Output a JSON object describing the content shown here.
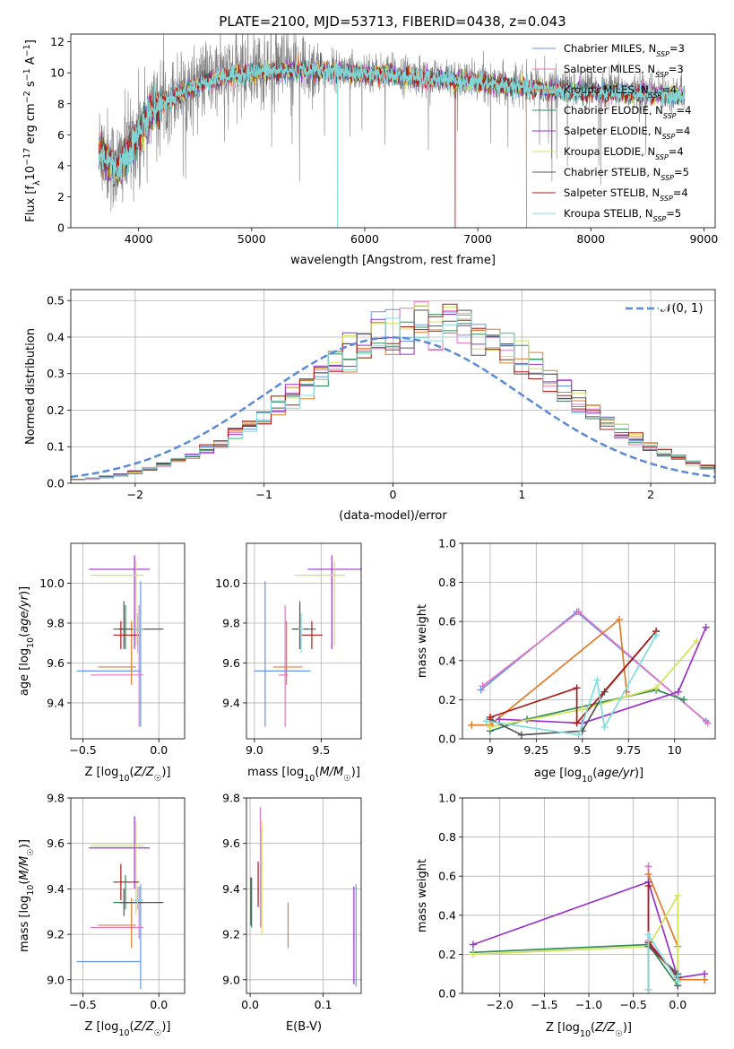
{
  "figure": {
    "title": "PLATE=2100, MJD=53713, FIBERID=0438, z=0.043"
  },
  "colors": [
    "#6495ed",
    "#e377c2",
    "#e07b28",
    "#2e8b57",
    "#9932cc",
    "#d4e157",
    "#555555",
    "#b01818",
    "#80dcdc"
  ],
  "legend_labels": [
    "Chabrier MILES, N_SSP=3",
    "Salpeter MILES, N_SSP=3",
    "Kroupa MILES, N_SSP=4",
    "Chabrier ELODIE, N_SSP=4",
    "Salpeter ELODIE, N_SSP=4",
    "Kroupa ELODIE, N_SSP=4",
    "Chabrier STELIB, N_SSP=5",
    "Salpeter STELIB, N_SSP=4",
    "Kroupa STELIB, N_SSP=5"
  ],
  "chart_data": [
    {
      "id": "spectrum",
      "type": "line",
      "xlabel": "wavelength [Angstrom, rest frame]",
      "ylabel": "Flux [f_λ 10^-17 erg cm^-2 s^-1 A^-1]",
      "xlim": [
        3400,
        9100
      ],
      "ylim": [
        0,
        12.5
      ],
      "xticks": [
        4000,
        5000,
        6000,
        7000,
        8000,
        9000
      ],
      "yticks": [
        0,
        2,
        4,
        6,
        8,
        10,
        12
      ],
      "legend": "top-right",
      "data_range": [
        3650,
        8830
      ],
      "continuum": [
        [
          3650,
          5.2
        ],
        [
          3800,
          3.8
        ],
        [
          3950,
          5.5
        ],
        [
          4100,
          7.6
        ],
        [
          4300,
          8.6
        ],
        [
          4600,
          9.6
        ],
        [
          5000,
          10.2
        ],
        [
          5500,
          10.3
        ],
        [
          6000,
          10.1
        ],
        [
          6500,
          9.8
        ],
        [
          7000,
          9.5
        ],
        [
          7500,
          9.1
        ],
        [
          8000,
          8.9
        ],
        [
          8500,
          8.8
        ],
        [
          8830,
          8.6
        ]
      ],
      "model_dropouts": [
        [
          5760,
          8
        ],
        [
          6800,
          7
        ],
        [
          7430,
          2
        ]
      ]
    },
    {
      "id": "residuals",
      "type": "histogram",
      "xlabel": "(data-model)/error",
      "ylabel": "Normed distribution",
      "xlim": [
        -2.5,
        2.5
      ],
      "ylim": [
        0,
        0.53
      ],
      "xticks": [
        -2,
        -1,
        0,
        1,
        2
      ],
      "yticks": [
        0.0,
        0.1,
        0.2,
        0.3,
        0.4,
        0.5
      ],
      "bin_width": 0.111,
      "reference_curve": "N(0,1)",
      "legend": "top-right"
    },
    {
      "id": "age_vs_Z",
      "type": "errorbar",
      "xlabel": "Z [log10(Z/Z☉)]",
      "ylabel": "age [log10(age/yr)]",
      "xlim": [
        -0.58,
        0.17
      ],
      "ylim": [
        9.22,
        10.2
      ],
      "xticks": [
        -0.5,
        0.0
      ],
      "yticks": [
        9.4,
        9.6,
        9.8,
        10.0
      ],
      "points": [
        {
          "x": -0.12,
          "y": 9.56,
          "xerr": [
            0.42,
            0.0
          ],
          "yerr": [
            0.28,
            0.45
          ]
        },
        {
          "x": -0.13,
          "y": 9.54,
          "xerr": [
            0.32,
            0.03
          ],
          "yerr": [
            0.26,
            0.35
          ]
        },
        {
          "x": -0.18,
          "y": 9.58,
          "xerr": [
            0.22,
            0.03
          ],
          "yerr": [
            0.09,
            0.23
          ]
        },
        {
          "x": -0.22,
          "y": 9.77,
          "xerr": [
            0.08,
            0.12
          ],
          "yerr": [
            0.1,
            0.12
          ]
        },
        {
          "x": -0.16,
          "y": 10.07,
          "xerr": [
            0.3,
            0.1
          ],
          "yerr": [
            0.4,
            0.07
          ]
        },
        {
          "x": -0.15,
          "y": 10.04,
          "xerr": [
            0.3,
            0.05
          ],
          "yerr": [
            0.35,
            0.07
          ]
        },
        {
          "x": -0.23,
          "y": 9.77,
          "xerr": [
            0.03,
            0.26
          ],
          "yerr": [
            0.1,
            0.14
          ]
        },
        {
          "x": -0.25,
          "y": 9.74,
          "xerr": [
            0.05,
            0.12
          ],
          "yerr": [
            0.07,
            0.07
          ]
        },
        {
          "x": -0.14,
          "y": 9.77,
          "xerr": [
            0.03,
            0.04
          ],
          "yerr": [
            0.12,
            0.08
          ]
        }
      ]
    },
    {
      "id": "age_vs_mass",
      "type": "errorbar",
      "xlabel": "mass [log10(M/M☉)]",
      "ylabel": "",
      "xlim": [
        8.94,
        9.8
      ],
      "ylim": [
        9.22,
        10.2
      ],
      "xticks": [
        9.0,
        9.5
      ],
      "yticks": [
        9.4,
        9.6,
        9.8,
        10.0
      ],
      "points": [
        {
          "x": 9.08,
          "y": 9.56,
          "xerr": [
            0.08,
            0.34
          ],
          "yerr": [
            0.28,
            0.45
          ]
        },
        {
          "x": 9.23,
          "y": 9.54,
          "xerr": [
            0.05,
            0.02
          ],
          "yerr": [
            0.26,
            0.35
          ]
        },
        {
          "x": 9.24,
          "y": 9.58,
          "xerr": [
            0.1,
            0.12
          ],
          "yerr": [
            0.09,
            0.23
          ]
        },
        {
          "x": 9.34,
          "y": 9.77,
          "xerr": [
            0.03,
            0.12
          ],
          "yerr": [
            0.1,
            0.12
          ]
        },
        {
          "x": 9.58,
          "y": 10.07,
          "xerr": [
            0.18,
            0.22
          ],
          "yerr": [
            0.4,
            0.07
          ]
        },
        {
          "x": 9.6,
          "y": 10.04,
          "xerr": [
            0.3,
            0.08
          ],
          "yerr": [
            0.35,
            0.07
          ]
        },
        {
          "x": 9.34,
          "y": 9.77,
          "xerr": [
            0.06,
            0.06
          ],
          "yerr": [
            0.1,
            0.14
          ]
        },
        {
          "x": 9.43,
          "y": 9.74,
          "xerr": [
            0.08,
            0.08
          ],
          "yerr": [
            0.07,
            0.07
          ]
        },
        {
          "x": 9.35,
          "y": 9.77,
          "xerr": [
            0.02,
            0.02
          ],
          "yerr": [
            0.12,
            0.08
          ]
        }
      ]
    },
    {
      "id": "weight_vs_age",
      "type": "line",
      "xlabel": "age [log10(age/yr)]",
      "ylabel": "mass weight",
      "xlim": [
        8.85,
        10.22
      ],
      "ylim": [
        0,
        1
      ],
      "xticks": [
        9.0,
        9.25,
        9.5,
        9.75,
        10.0
      ],
      "yticks": [
        0.0,
        0.2,
        0.4,
        0.6,
        0.8,
        1.0
      ],
      "series": [
        {
          "x": [
            8.95,
            9.47,
            10.17
          ],
          "y": [
            0.25,
            0.65,
            0.09
          ]
        },
        {
          "x": [
            8.96,
            9.48,
            10.18
          ],
          "y": [
            0.27,
            0.65,
            0.08
          ]
        },
        {
          "x": [
            8.9,
            9.0,
            9.7,
            9.74
          ],
          "y": [
            0.07,
            0.07,
            0.61,
            0.24
          ]
        },
        {
          "x": [
            9.0,
            9.2,
            9.9,
            10.05
          ],
          "y": [
            0.04,
            0.1,
            0.25,
            0.2
          ]
        },
        {
          "x": [
            9.05,
            9.5,
            10.02,
            10.17
          ],
          "y": [
            0.1,
            0.08,
            0.24,
            0.57
          ]
        },
        {
          "x": [
            9.0,
            9.5,
            9.9,
            10.12
          ],
          "y": [
            0.06,
            0.15,
            0.26,
            0.5
          ]
        },
        {
          "x": [
            9.0,
            9.17,
            9.5,
            9.62,
            9.9
          ],
          "y": [
            0.1,
            0.02,
            0.04,
            0.24,
            0.55
          ]
        },
        {
          "x": [
            9.0,
            9.47,
            9.47,
            9.9
          ],
          "y": [
            0.11,
            0.26,
            0.08,
            0.55
          ]
        },
        {
          "x": [
            8.98,
            9.48,
            9.58,
            9.62,
            9.9
          ],
          "y": [
            0.09,
            0.02,
            0.3,
            0.06,
            0.53
          ]
        }
      ]
    },
    {
      "id": "mass_vs_Z",
      "type": "errorbar",
      "xlabel": "Z [log10(Z/Z☉)]",
      "ylabel": "mass [log10(M/M☉)]",
      "xlim": [
        -0.58,
        0.17
      ],
      "ylim": [
        8.94,
        9.8
      ],
      "xticks": [
        -0.5,
        0.0
      ],
      "yticks": [
        9.0,
        9.2,
        9.4,
        9.6,
        9.8
      ],
      "points": [
        {
          "x": -0.12,
          "y": 9.08,
          "xerr": [
            0.42,
            0.0
          ],
          "yerr": [
            0.12,
            0.34
          ]
        },
        {
          "x": -0.13,
          "y": 9.23,
          "xerr": [
            0.32,
            0.03
          ],
          "yerr": [
            0.05,
            0.18
          ]
        },
        {
          "x": -0.18,
          "y": 9.24,
          "xerr": [
            0.22,
            0.03
          ],
          "yerr": [
            0.1,
            0.12
          ]
        },
        {
          "x": -0.22,
          "y": 9.34,
          "xerr": [
            0.08,
            0.12
          ],
          "yerr": [
            0.03,
            0.12
          ]
        },
        {
          "x": -0.16,
          "y": 9.58,
          "xerr": [
            0.3,
            0.1
          ],
          "yerr": [
            0.18,
            0.14
          ]
        },
        {
          "x": -0.15,
          "y": 9.59,
          "xerr": [
            0.3,
            0.05
          ],
          "yerr": [
            0.3,
            0.11
          ]
        },
        {
          "x": -0.23,
          "y": 9.34,
          "xerr": [
            0.03,
            0.26
          ],
          "yerr": [
            0.06,
            0.06
          ]
        },
        {
          "x": -0.25,
          "y": 9.43,
          "xerr": [
            0.05,
            0.12
          ],
          "yerr": [
            0.08,
            0.08
          ]
        },
        {
          "x": -0.14,
          "y": 9.35,
          "xerr": [
            0.03,
            0.04
          ],
          "yerr": [
            0.04,
            0.06
          ]
        }
      ]
    },
    {
      "id": "mass_vs_ebv",
      "type": "errorbar",
      "xlabel": "E(B-V)",
      "ylabel": "",
      "xlim": [
        -0.005,
        0.152
      ],
      "ylim": [
        8.94,
        9.8
      ],
      "xticks": [
        0.0,
        0.1
      ],
      "yticks": [
        9.0,
        9.2,
        9.4,
        9.6,
        9.8
      ],
      "points": [
        {
          "x": 0.145,
          "y": 9.19,
          "xerr": [
            0,
            0
          ],
          "yerr": [
            0.22,
            0.23
          ]
        },
        {
          "x": 0.014,
          "y": 9.45,
          "xerr": [
            0,
            0
          ],
          "yerr": [
            0.22,
            0.31
          ]
        },
        {
          "x": 0.052,
          "y": 9.24,
          "xerr": [
            0,
            0
          ],
          "yerr": [
            0.1,
            0.1
          ]
        },
        {
          "x": 0.002,
          "y": 9.35,
          "xerr": [
            0,
            0
          ],
          "yerr": [
            0.12,
            0.1
          ]
        },
        {
          "x": 0.142,
          "y": 9.2,
          "xerr": [
            0,
            0
          ],
          "yerr": [
            0.22,
            0.21
          ]
        },
        {
          "x": 0.016,
          "y": 9.45,
          "xerr": [
            0,
            0
          ],
          "yerr": [
            0.25,
            0.25
          ]
        },
        {
          "x": 0.001,
          "y": 9.36,
          "xerr": [
            0,
            0
          ],
          "yerr": [
            0.12,
            0.09
          ]
        },
        {
          "x": 0.011,
          "y": 9.42,
          "xerr": [
            0,
            0
          ],
          "yerr": [
            0.1,
            0.1
          ]
        },
        {
          "x": 0.015,
          "y": 9.45,
          "xerr": [
            0,
            0
          ],
          "yerr": [
            0.22,
            0.22
          ]
        }
      ]
    },
    {
      "id": "weight_vs_Z",
      "type": "line",
      "xlabel": "Z [log10(Z/Z☉)]",
      "ylabel": "mass weight",
      "xlim": [
        -2.42,
        0.42
      ],
      "ylim": [
        0,
        1
      ],
      "xticks": [
        -2.0,
        -1.5,
        -1.0,
        -0.5,
        0.0
      ],
      "yticks": [
        0.0,
        0.2,
        0.4,
        0.6,
        0.8,
        1.0
      ],
      "series": [
        {
          "x": [
            -0.33,
            -0.33,
            0.0
          ],
          "y": [
            0.65,
            0.25,
            0.09
          ]
        },
        {
          "x": [
            -0.33,
            -0.33,
            0.0
          ],
          "y": [
            0.65,
            0.27,
            0.08
          ]
        },
        {
          "x": [
            -0.33,
            0.0,
            0.0,
            0.3
          ],
          "y": [
            0.61,
            0.24,
            0.07,
            0.07
          ]
        },
        {
          "x": [
            -2.3,
            -0.33,
            0.0
          ],
          "y": [
            0.21,
            0.25,
            0.04
          ]
        },
        {
          "x": [
            -2.3,
            -0.33,
            0.0,
            0.3
          ],
          "y": [
            0.25,
            0.57,
            0.08,
            0.1
          ]
        },
        {
          "x": [
            -2.3,
            -0.33,
            0.0,
            0.0
          ],
          "y": [
            0.2,
            0.24,
            0.5,
            0.06
          ]
        },
        {
          "x": [
            -0.33,
            -0.33,
            0.0,
            0.0
          ],
          "y": [
            0.02,
            0.24,
            0.1,
            0.04
          ]
        },
        {
          "x": [
            -0.33,
            -0.33,
            0.0
          ],
          "y": [
            0.55,
            0.26,
            0.08
          ]
        },
        {
          "x": [
            -0.33,
            -0.33,
            0.0,
            0.0
          ],
          "y": [
            0.02,
            0.3,
            0.06,
            0.09
          ]
        }
      ]
    }
  ]
}
